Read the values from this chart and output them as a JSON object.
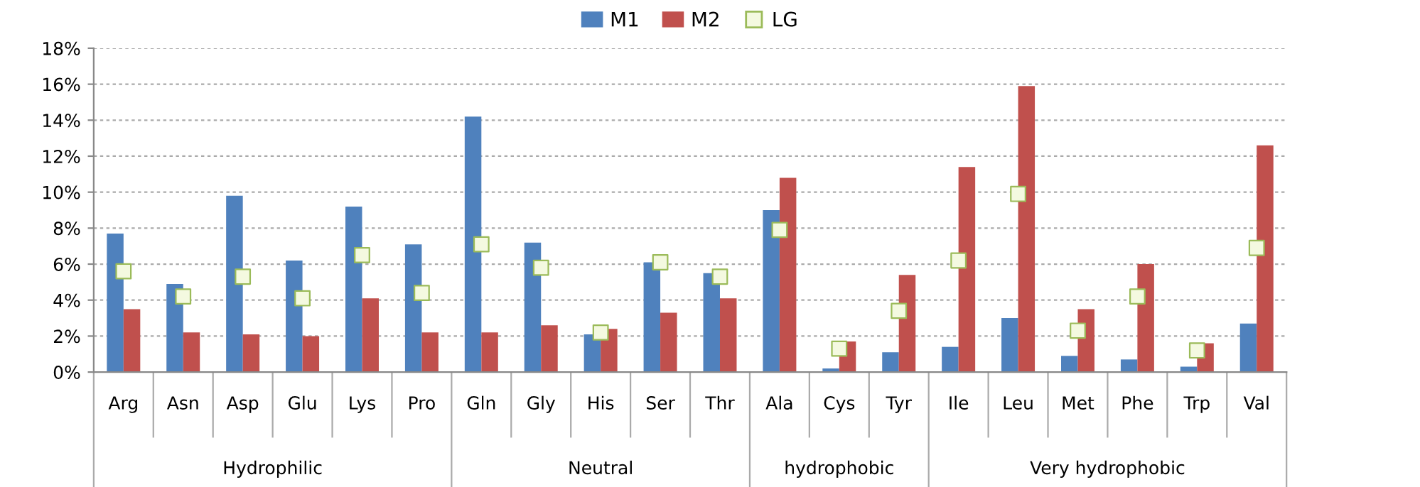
{
  "chart_data": {
    "type": "bar",
    "categories": [
      "Arg",
      "Asn",
      "Asp",
      "Glu",
      "Lys",
      "Pro",
      "Gln",
      "Gly",
      "His",
      "Ser",
      "Thr",
      "Ala",
      "Cys",
      "Tyr",
      "Ile",
      "Leu",
      "Met",
      "Phe",
      "Trp",
      "Val"
    ],
    "series": [
      {
        "name": "M1",
        "color": "#4f81bd",
        "values": [
          7.7,
          4.9,
          9.8,
          6.2,
          9.2,
          7.1,
          14.2,
          7.2,
          2.1,
          6.1,
          5.5,
          9.0,
          0.2,
          1.1,
          1.4,
          3.0,
          0.9,
          0.7,
          0.3,
          2.7
        ]
      },
      {
        "name": "M2",
        "color": "#c0504d",
        "values": [
          3.5,
          2.2,
          2.1,
          2.0,
          4.1,
          2.2,
          2.2,
          2.6,
          2.4,
          3.3,
          4.1,
          10.8,
          1.7,
          5.4,
          11.4,
          15.9,
          3.5,
          6.0,
          1.6,
          12.6
        ]
      },
      {
        "name": "LG",
        "type": "scatter",
        "marker": "square",
        "color": "#f4f9e0",
        "values": [
          5.6,
          4.2,
          5.3,
          4.1,
          6.5,
          4.4,
          7.1,
          5.8,
          2.2,
          6.1,
          5.3,
          7.9,
          1.3,
          3.4,
          6.2,
          9.9,
          2.3,
          4.2,
          1.2,
          6.9
        ]
      }
    ],
    "ylim": [
      0,
      18
    ],
    "yticks": [
      {
        "value": 0,
        "label": "0%"
      },
      {
        "value": 2,
        "label": "2%"
      },
      {
        "value": 4,
        "label": "4%"
      },
      {
        "value": 6,
        "label": "6%"
      },
      {
        "value": 8,
        "label": "8%"
      },
      {
        "value": 10,
        "label": "10%"
      },
      {
        "value": 12,
        "label": "12%"
      },
      {
        "value": 14,
        "label": "14%"
      },
      {
        "value": 16,
        "label": "16%"
      },
      {
        "value": 18,
        "label": "18%"
      }
    ],
    "grid": "y",
    "legend": "top",
    "annotations": [
      "Hydrophilic",
      "Neutral",
      "hydrophobic",
      "Very hydrophobic"
    ]
  }
}
